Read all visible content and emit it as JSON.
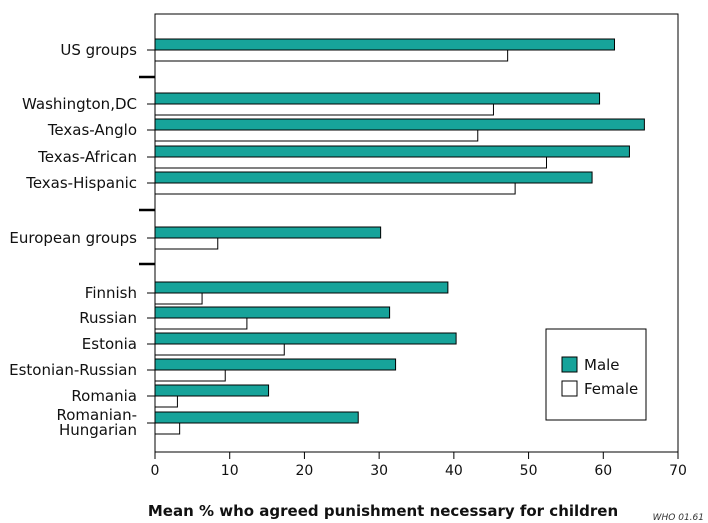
{
  "chart_data": {
    "type": "bar",
    "orientation": "horizontal",
    "xlabel": "Mean % who agreed punishment necessary for children",
    "ylabel": "",
    "xlim": [
      0,
      70
    ],
    "xticks": [
      "0",
      "10",
      "20",
      "30",
      "40",
      "50",
      "60",
      "70"
    ],
    "grid": false,
    "legend_position": "bottom-right",
    "categories": [
      "US groups",
      "Washington,DC",
      "Texas-Anglo",
      "Texas-African",
      "Texas-Hispanic",
      "European groups",
      "Finnish",
      "Russian",
      "Estonia",
      "Estonian-Russian",
      "Romania",
      "Romanian-Hungarian"
    ],
    "category_lines": [
      [
        "US groups"
      ],
      [
        "Washington,DC"
      ],
      [
        "Texas-Anglo"
      ],
      [
        "Texas-African"
      ],
      [
        "Texas-Hispanic"
      ],
      [
        "European groups"
      ],
      [
        "Finnish"
      ],
      [
        "Russian"
      ],
      [
        "Estonia"
      ],
      [
        "Estonian-Russian"
      ],
      [
        "Romania"
      ],
      [
        "Romanian-",
        "Hungarian"
      ]
    ],
    "groups": [
      [
        "US groups"
      ],
      [
        "Washington,DC",
        "Texas-Anglo",
        "Texas-African",
        "Texas-Hispanic"
      ],
      [
        "European groups"
      ],
      [
        "Finnish",
        "Russian",
        "Estonia",
        "Estonian-Russian",
        "Romania",
        "Romanian-Hungarian"
      ]
    ],
    "series": [
      {
        "name": "Male",
        "color": "#17a39a",
        "values": [
          61.5,
          59.5,
          65.5,
          63.5,
          58.5,
          30.2,
          39.2,
          31.4,
          40.3,
          32.2,
          15.2,
          27.2
        ]
      },
      {
        "name": "Female",
        "color": "#ffffff",
        "values": [
          47.2,
          45.3,
          43.2,
          52.4,
          48.2,
          8.4,
          6.3,
          12.3,
          17.3,
          9.4,
          3.0,
          3.3
        ]
      }
    ]
  },
  "credit": "WHO 01.61"
}
